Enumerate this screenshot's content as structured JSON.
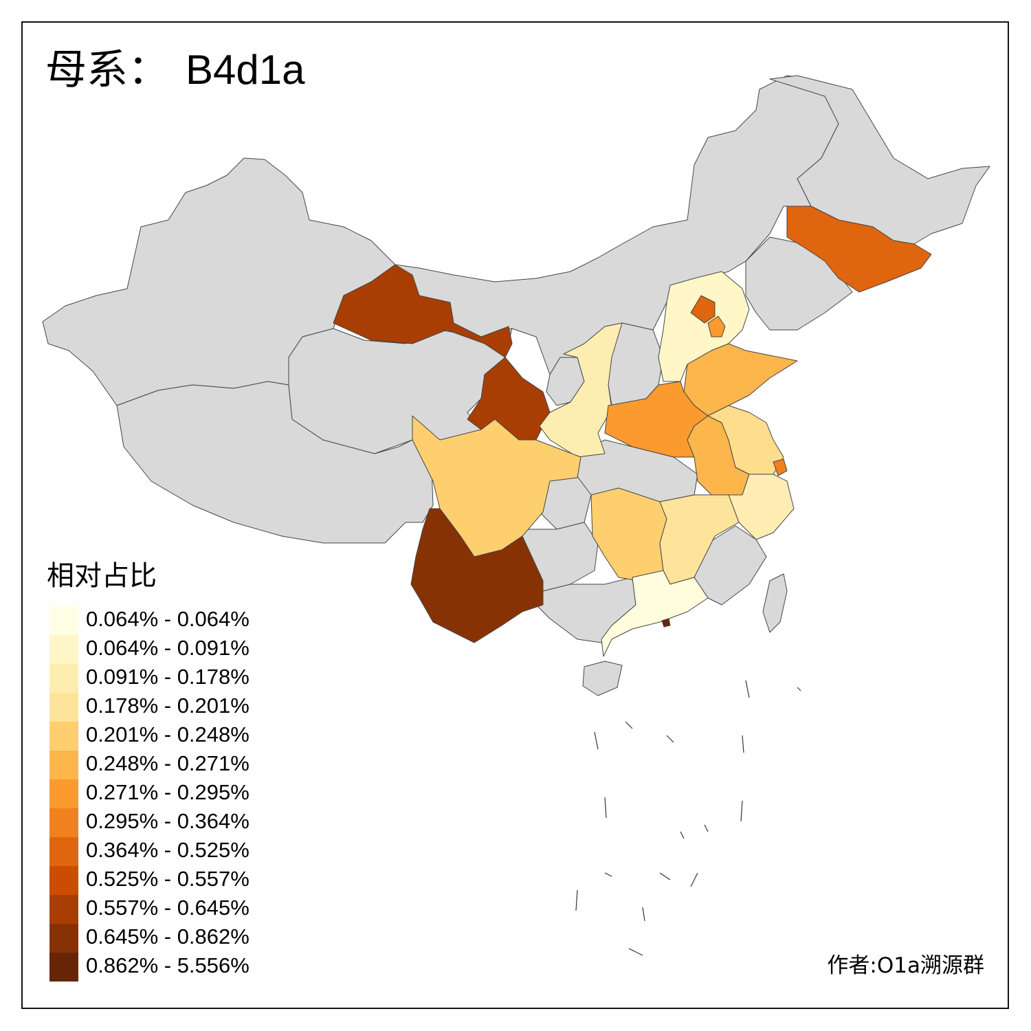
{
  "title": {
    "prefix": "母系：",
    "code": "B4d1a"
  },
  "legend": {
    "title": "相对占比",
    "items": [
      {
        "label": "0.064% - 0.064%",
        "color": "#FFFFE5"
      },
      {
        "label": "0.064% - 0.091%",
        "color": "#FFF7C8"
      },
      {
        "label": "0.091% - 0.178%",
        "color": "#FEEDB0"
      },
      {
        "label": "0.178% - 0.201%",
        "color": "#FEE39A"
      },
      {
        "label": "0.201% - 0.248%",
        "color": "#FECF6F"
      },
      {
        "label": "0.248% - 0.271%",
        "color": "#FDB64B"
      },
      {
        "label": "0.271% - 0.295%",
        "color": "#FB9A2E"
      },
      {
        "label": "0.295% - 0.364%",
        "color": "#F1801F"
      },
      {
        "label": "0.364% - 0.525%",
        "color": "#E0650F"
      },
      {
        "label": "0.525% - 0.557%",
        "color": "#CC4C02"
      },
      {
        "label": "0.557% - 0.645%",
        "color": "#A83E03"
      },
      {
        "label": "0.645% - 0.862%",
        "color": "#873204"
      },
      {
        "label": "0.862% - 5.556%",
        "color": "#662506"
      }
    ]
  },
  "no_data_color": "#D9D9D9",
  "credit": "作者:O1a溯源群"
}
